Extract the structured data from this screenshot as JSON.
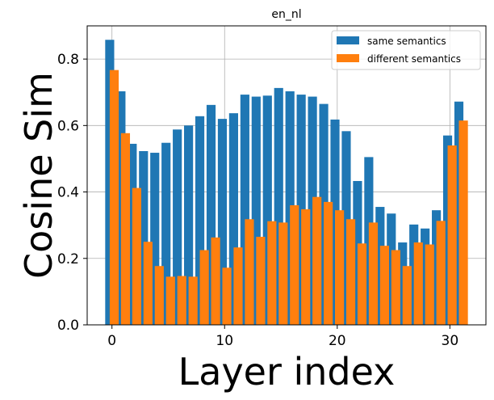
{
  "chart_data": {
    "type": "bar",
    "title": "en_nl",
    "xlabel": "Layer index",
    "ylabel": "Cosine Sim",
    "x": [
      0,
      1,
      2,
      3,
      4,
      5,
      6,
      7,
      8,
      9,
      10,
      11,
      12,
      13,
      14,
      15,
      16,
      17,
      18,
      19,
      20,
      21,
      22,
      23,
      24,
      25,
      26,
      27,
      28,
      29,
      30,
      31
    ],
    "xlim": [
      -2.2,
      33.2
    ],
    "ylim": [
      0,
      0.9
    ],
    "xticks": [
      0,
      10,
      20,
      30
    ],
    "xtick_labels": [
      "0",
      "10",
      "20",
      "30"
    ],
    "yticks": [
      0.0,
      0.2,
      0.4,
      0.6,
      0.8
    ],
    "ytick_labels": [
      "0.0",
      "0.2",
      "0.4",
      "0.6",
      "0.8"
    ],
    "grid": true,
    "legend_position": "top-right",
    "series": [
      {
        "name": "same semantics",
        "color": "#1f77b4",
        "offset": -0.2,
        "values": [
          0.858,
          0.703,
          0.545,
          0.523,
          0.518,
          0.548,
          0.588,
          0.6,
          0.628,
          0.662,
          0.62,
          0.637,
          0.693,
          0.687,
          0.69,
          0.713,
          0.703,
          0.693,
          0.687,
          0.665,
          0.618,
          0.583,
          0.433,
          0.505,
          0.355,
          0.335,
          0.248,
          0.302,
          0.29,
          0.345,
          0.57,
          0.672
        ]
      },
      {
        "name": "different semantics",
        "color": "#ff7f0e",
        "offset": 0.2,
        "values": [
          0.767,
          0.577,
          0.412,
          0.25,
          0.177,
          0.145,
          0.147,
          0.145,
          0.225,
          0.263,
          0.172,
          0.233,
          0.318,
          0.265,
          0.312,
          0.308,
          0.36,
          0.348,
          0.385,
          0.37,
          0.345,
          0.318,
          0.245,
          0.308,
          0.238,
          0.225,
          0.177,
          0.248,
          0.242,
          0.313,
          0.54,
          0.615
        ]
      }
    ]
  }
}
